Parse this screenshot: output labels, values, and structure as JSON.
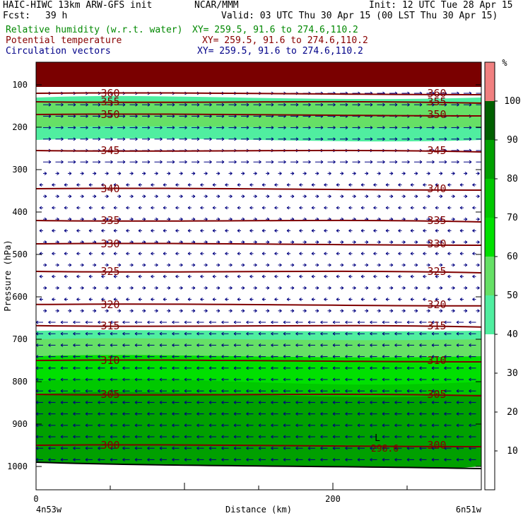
{
  "header": {
    "model": "HAIC-HIWC 13km ARW-GFS init",
    "org": "NCAR/MMM",
    "init": "Init: 12 UTC Tue 28 Apr 15",
    "fcst_label": "Fcst:",
    "fcst_value": "39 h",
    "valid": "Valid: 03 UTC Thu 30 Apr 15 (00 LST Thu 30 Apr 15)",
    "lines": [
      {
        "field": "Relative humidity (w.r.t. water)",
        "xy": "XY= 259.5, 91.6 to 274.6,110.2",
        "color": "#008800"
      },
      {
        "field": "Potential temperature",
        "xy": "XY= 259.5, 91.6 to 274.6,110.2",
        "color": "#880000"
      },
      {
        "field": "Circulation vectors",
        "xy": "XY= 259.5, 91.6 to 274.6,110.2",
        "color": "#000088"
      }
    ]
  },
  "colors": {
    "rh_fill": {
      "50": "#50eea0",
      "60": "#66e066",
      "70": "#00e000",
      "80": "#00c800",
      "90": "#00a000",
      "100": "#006000"
    },
    "theta": "#800000",
    "vectors": "#000080",
    "top_band": "#7a0000"
  },
  "chart_data": {
    "type": "cross-section",
    "x_axis": {
      "label": "Distance (km)",
      "ticks": [
        "0",
        "200"
      ],
      "range": [
        0,
        300
      ],
      "end_labels": [
        "4n53w",
        "6n51w"
      ]
    },
    "y_axis": {
      "label": "Pressure (hPa)",
      "scale": "pressure",
      "range": [
        1050,
        60
      ],
      "ticks": [
        "100",
        "200",
        "300",
        "400",
        "500",
        "600",
        "700",
        "800",
        "900",
        "1000"
      ]
    },
    "colorbar": {
      "unit": "%",
      "levels": [
        "10",
        "20",
        "30",
        "40",
        "50",
        "60",
        "70",
        "80",
        "90",
        "100"
      ]
    },
    "relative_humidity_regions": [
      {
        "level": 50,
        "p_top": 130,
        "p_bottom": 230
      },
      {
        "level": 60,
        "p_top": 140,
        "p_bottom": 200
      },
      {
        "level": 50,
        "p_top": 680,
        "p_bottom": 720
      },
      {
        "level": 60,
        "p_top": 700,
        "p_bottom": 760
      },
      {
        "level": 70,
        "p_top": 740,
        "p_bottom": 820
      },
      {
        "level": 80,
        "p_top": 800,
        "p_bottom": 1000
      },
      {
        "level": 90,
        "p_top": 830,
        "p_bottom": 1000
      }
    ],
    "potential_temperature": [
      {
        "value": "360",
        "pressure": 120
      },
      {
        "value": "355",
        "pressure": 140
      },
      {
        "value": "350",
        "pressure": 170
      },
      {
        "value": "345",
        "pressure": 255
      },
      {
        "value": "340",
        "pressure": 345
      },
      {
        "value": "335",
        "pressure": 420
      },
      {
        "value": "330",
        "pressure": 475
      },
      {
        "value": "325",
        "pressure": 540
      },
      {
        "value": "320",
        "pressure": 618
      },
      {
        "value": "315",
        "pressure": 668
      },
      {
        "value": "310",
        "pressure": 750
      },
      {
        "value": "305",
        "pressure": 830
      },
      {
        "value": "300",
        "pressure": 950
      }
    ],
    "surface": {
      "pressure_start": 990,
      "pressure_end": 1005
    },
    "low_marker": {
      "label": "L",
      "value": "298.6"
    }
  }
}
